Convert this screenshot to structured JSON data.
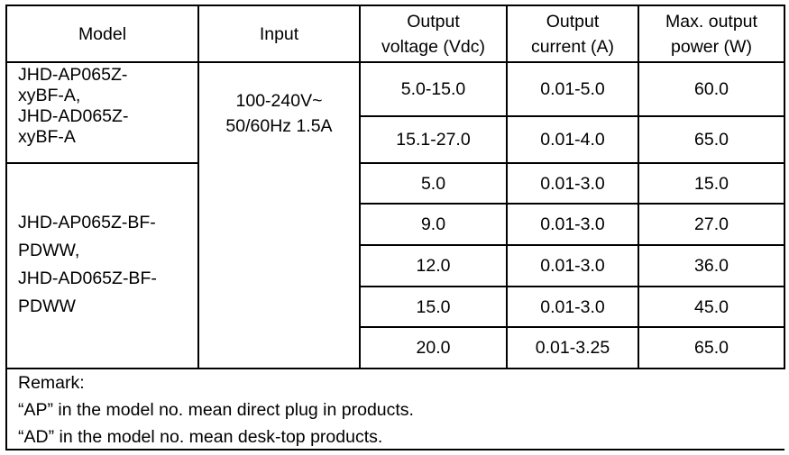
{
  "headers": {
    "model": "Model",
    "input": "Input",
    "voltage": [
      "Output",
      "voltage (Vdc)"
    ],
    "current": [
      "Output",
      "current (A)"
    ],
    "power": [
      "Max. output",
      "power (W)"
    ]
  },
  "groups": [
    {
      "model_lines": [
        "JHD-AP065Z-",
        "xyBF-A,",
        "JHD-AD065Z-",
        "xyBF-A"
      ]
    },
    {
      "model_lines": [
        "JHD-AP065Z-BF-",
        "PDWW,",
        "JHD-AD065Z-BF-",
        "PDWW"
      ]
    }
  ],
  "input_lines": [
    "100-240V~",
    "50/60Hz 1.5A"
  ],
  "rows": [
    {
      "voltage": "5.0-15.0",
      "current": "0.01-5.0",
      "power": "60.0"
    },
    {
      "voltage": "15.1-27.0",
      "current": "0.01-4.0",
      "power": "65.0"
    },
    {
      "voltage": "5.0",
      "current": "0.01-3.0",
      "power": "15.0"
    },
    {
      "voltage": "9.0",
      "current": "0.01-3.0",
      "power": "27.0"
    },
    {
      "voltage": "12.0",
      "current": "0.01-3.0",
      "power": "36.0"
    },
    {
      "voltage": "15.0",
      "current": "0.01-3.0",
      "power": "45.0"
    },
    {
      "voltage": "20.0",
      "current": "0.01-3.25",
      "power": "65.0"
    }
  ],
  "remark": {
    "title": "Remark:",
    "lines": [
      "“AP” in the model no. mean direct plug in products.",
      "“AD” in the model no. mean desk-top products."
    ]
  }
}
